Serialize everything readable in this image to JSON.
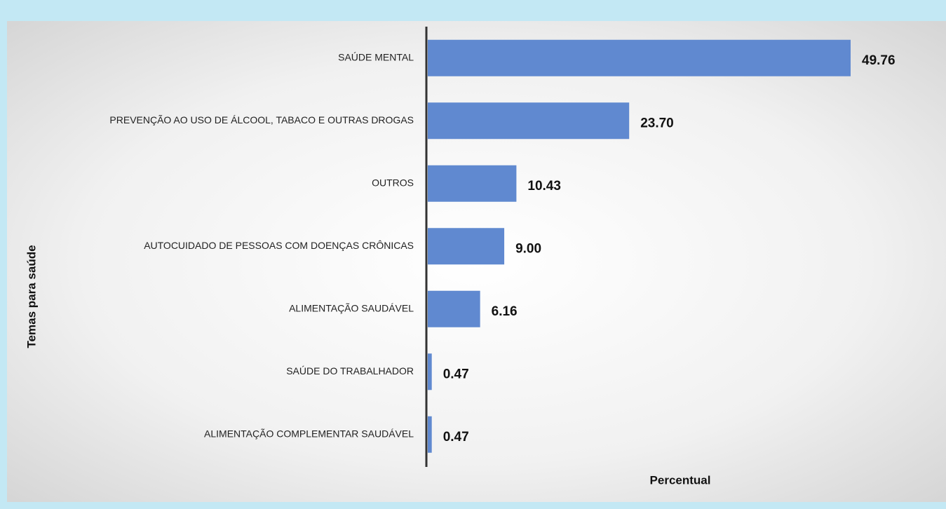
{
  "chart_data": {
    "type": "bar",
    "orientation": "horizontal",
    "y_label": "Temas para saúde",
    "x_label": "Percentual",
    "categories": [
      "SAÚDE MENTAL",
      "PREVENÇÃO AO USO DE ÁLCOOL, TABACO E OUTRAS DROGAS",
      "OUTROS",
      "AUTOCUIDADO DE PESSOAS COM DOENÇAS CRÔNICAS",
      "ALIMENTAÇÃO SAUDÁVEL",
      "SAÚDE DO TRABALHADOR",
      "ALIMENTAÇÃO COMPLEMENTAR SAUDÁVEL"
    ],
    "values": [
      49.76,
      23.7,
      10.43,
      9.0,
      6.16,
      0.47,
      0.47
    ],
    "value_labels": [
      "49.76",
      "23.70",
      "10.43",
      "9.00",
      "6.16",
      "0.47",
      "0.47"
    ],
    "color": "#6089d0"
  }
}
